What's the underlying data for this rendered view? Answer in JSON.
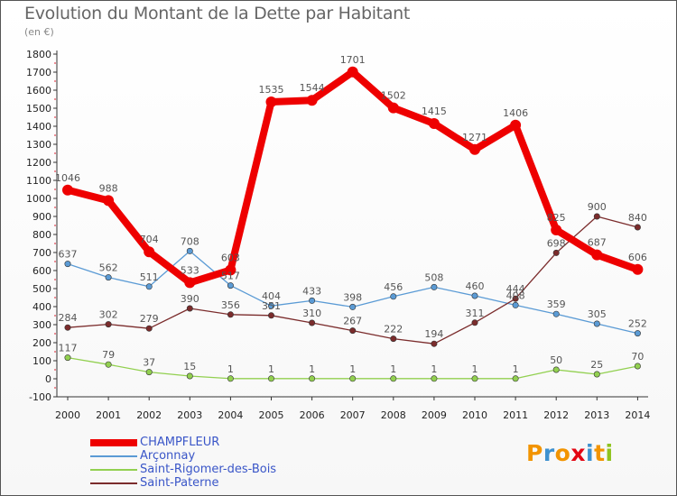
{
  "title": "Evolution du Montant de la Dette par Habitant",
  "subtitle": "(en €)",
  "logo": {
    "letters": [
      "P",
      "r",
      "o",
      "x",
      "i",
      "t",
      "i"
    ],
    "colors": [
      "#f29400",
      "#3e91cf",
      "#f29400",
      "#e30613",
      "#3e91cf",
      "#f29400",
      "#8fc31f"
    ]
  },
  "chart_data": {
    "type": "line",
    "x": [
      2000,
      2001,
      2002,
      2003,
      2004,
      2005,
      2006,
      2007,
      2008,
      2009,
      2010,
      2011,
      2012,
      2013,
      2014
    ],
    "ylim": [
      -100,
      1800
    ],
    "y_ticks": [
      -100,
      0,
      100,
      200,
      300,
      400,
      500,
      600,
      700,
      800,
      900,
      1000,
      1100,
      1200,
      1300,
      1400,
      1500,
      1600,
      1700,
      1800
    ],
    "grid": false,
    "legend_position": "bottom-left",
    "series": [
      {
        "name": "CHAMPFLEUR",
        "color": "#ee0000",
        "values": [
          1046,
          988,
          704,
          533,
          603,
          1535,
          1544,
          1701,
          1502,
          1415,
          1271,
          1406,
          825,
          687,
          606
        ]
      },
      {
        "name": "Arçonnay",
        "color": "#5b9bd5",
        "values": [
          637,
          562,
          511,
          708,
          517,
          404,
          433,
          398,
          456,
          508,
          460,
          408,
          359,
          305,
          252
        ]
      },
      {
        "name": "Saint-Rigomer-des-Bois",
        "color": "#92d050",
        "values": [
          117,
          79,
          37,
          15,
          1,
          1,
          1,
          1,
          1,
          1,
          1,
          1,
          50,
          25,
          70
        ]
      },
      {
        "name": "Saint-Paterne",
        "color": "#7b2c2c",
        "values": [
          284,
          302,
          279,
          390,
          356,
          351,
          310,
          267,
          222,
          194,
          311,
          444,
          698,
          900,
          840
        ]
      }
    ]
  }
}
